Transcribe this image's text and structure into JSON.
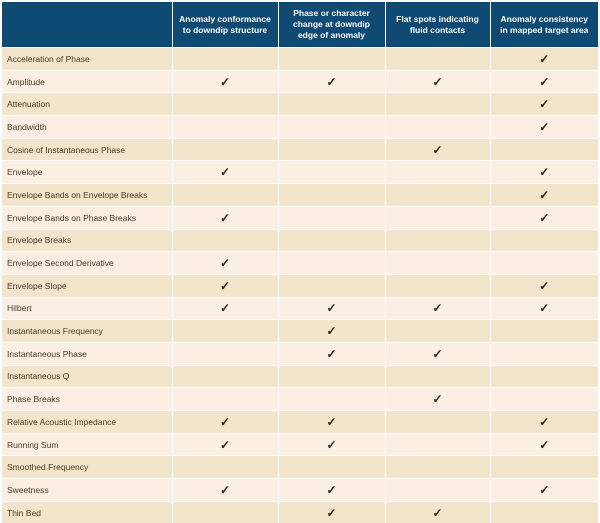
{
  "columns": [
    "Anomaly conformance to downdip structure",
    "Phase or character change at downdip edge of anomaly",
    "Flat spots indicating fluid contacts",
    "Anomaly consistency in mapped target area"
  ],
  "check_symbol": "✓",
  "rows": [
    {
      "label": "Acceleration of Phase",
      "checks": [
        false,
        false,
        false,
        true
      ]
    },
    {
      "label": "Amplitude",
      "checks": [
        true,
        true,
        true,
        true
      ]
    },
    {
      "label": "Attenuation",
      "checks": [
        false,
        false,
        false,
        true
      ]
    },
    {
      "label": "Bandwidth",
      "checks": [
        false,
        false,
        false,
        true
      ]
    },
    {
      "label": "Cosine of Instantaneous Phase",
      "checks": [
        false,
        false,
        true,
        false
      ]
    },
    {
      "label": "Envelope",
      "checks": [
        true,
        false,
        false,
        true
      ]
    },
    {
      "label": "Envelope Bands on Envelope Breaks",
      "checks": [
        false,
        false,
        false,
        true
      ]
    },
    {
      "label": "Envelope Bands on Phase Breaks",
      "checks": [
        true,
        false,
        false,
        true
      ]
    },
    {
      "label": "Envelope Breaks",
      "checks": [
        false,
        false,
        false,
        false
      ]
    },
    {
      "label": "Envelope Second Derivative",
      "checks": [
        true,
        false,
        false,
        false
      ]
    },
    {
      "label": "Envelope Slope",
      "checks": [
        true,
        false,
        false,
        true
      ]
    },
    {
      "label": "Hilbert",
      "checks": [
        true,
        true,
        true,
        true
      ]
    },
    {
      "label": "Instantaneous Frequency",
      "checks": [
        false,
        true,
        false,
        false
      ]
    },
    {
      "label": "Instantaneous Phase",
      "checks": [
        false,
        true,
        true,
        false
      ]
    },
    {
      "label": "Instantaneous Q",
      "checks": [
        false,
        false,
        false,
        false
      ]
    },
    {
      "label": "Phase Breaks",
      "checks": [
        false,
        false,
        true,
        false
      ]
    },
    {
      "label": "Relative Acoustic Impedance",
      "checks": [
        true,
        true,
        false,
        true
      ]
    },
    {
      "label": "Running Sum",
      "checks": [
        true,
        true,
        false,
        true
      ]
    },
    {
      "label": "Smoothed Frequency",
      "checks": [
        false,
        false,
        false,
        false
      ]
    },
    {
      "label": "Sweetness",
      "checks": [
        true,
        true,
        false,
        true
      ]
    },
    {
      "label": "Thin Bed",
      "checks": [
        false,
        true,
        true,
        false
      ]
    }
  ]
}
